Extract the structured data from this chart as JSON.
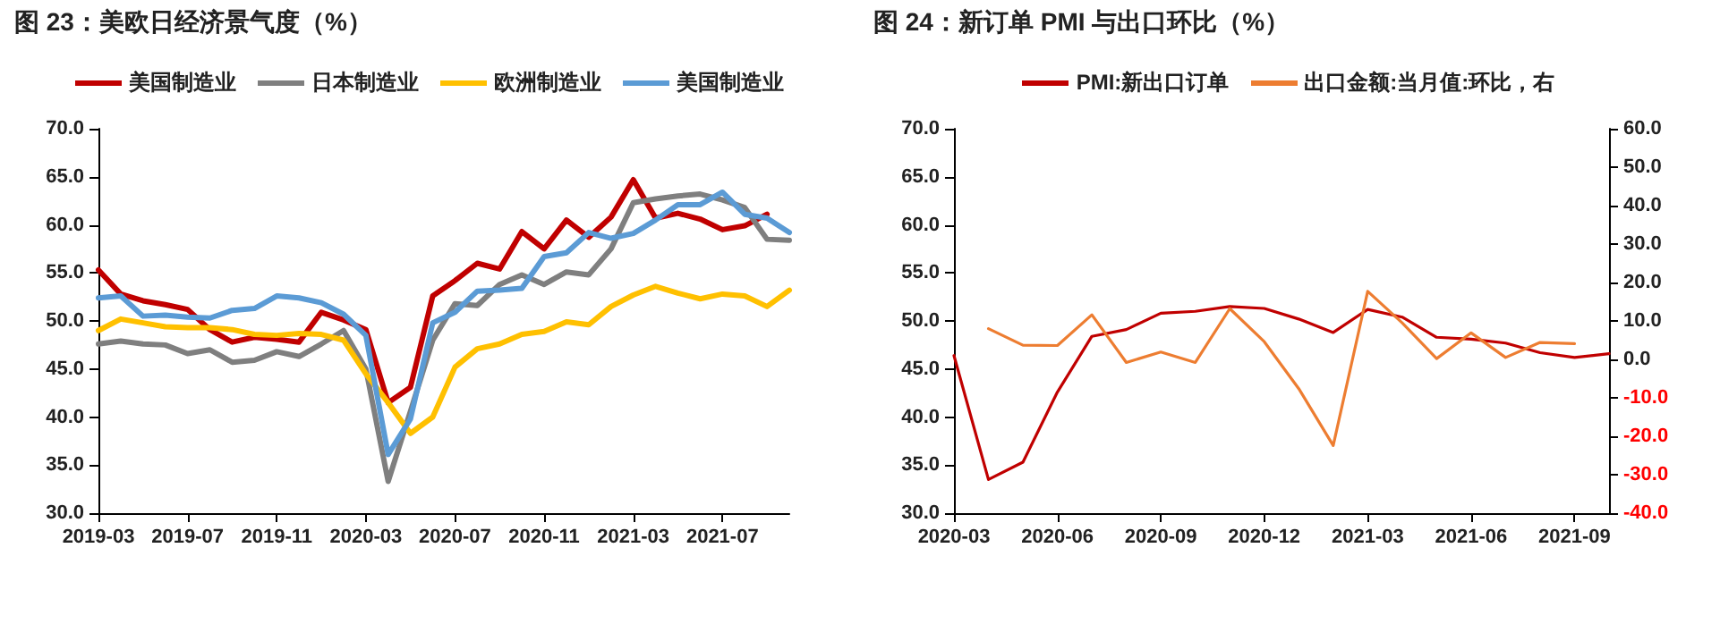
{
  "chart_data": [
    {
      "type": "line",
      "title": "图 23：美欧日经济景气度（%）",
      "legend": "top",
      "grid": false,
      "marker": "none",
      "categories": [
        "2019-03",
        null,
        null,
        null,
        "2019-07",
        null,
        null,
        null,
        "2019-11",
        null,
        null,
        null,
        "2020-03",
        null,
        null,
        null,
        "2020-07",
        null,
        null,
        null,
        "2020-11",
        null,
        null,
        null,
        "2021-03",
        null,
        null,
        null,
        "2021-07",
        null,
        null,
        null
      ],
      "ylim": [
        30,
        70
      ],
      "yticks": [
        {
          "value": 30,
          "label": "30.0"
        },
        {
          "value": 35,
          "label": "35.0"
        },
        {
          "value": 40,
          "label": "40.0"
        },
        {
          "value": 45,
          "label": "45.0"
        },
        {
          "value": 50,
          "label": "50.0"
        },
        {
          "value": 55,
          "label": "55.0"
        },
        {
          "value": 60,
          "label": "60.0"
        },
        {
          "value": 65,
          "label": "65.0"
        },
        {
          "value": 70,
          "label": "70.0"
        }
      ],
      "series": [
        {
          "name": "美国制造业",
          "color": "#c00000",
          "values": [
            55.3,
            52.8,
            52.1,
            51.7,
            51.2,
            49.1,
            47.8,
            48.3,
            48.1,
            47.8,
            50.9,
            50.1,
            49.1,
            41.5,
            43.1,
            52.6,
            54.2,
            56.0,
            55.4,
            59.3,
            57.5,
            60.5,
            58.7,
            60.8,
            64.7,
            60.7,
            61.2,
            60.6,
            59.5,
            59.9,
            61.1,
            null
          ]
        },
        {
          "name": "日本制造业",
          "color": "#7f7f7f",
          "values": [
            47.6,
            47.9,
            47.6,
            47.5,
            46.6,
            47.0,
            45.7,
            45.9,
            46.8,
            46.3,
            47.6,
            49.0,
            45.0,
            33.3,
            40.6,
            48.0,
            51.8,
            51.6,
            53.8,
            54.8,
            53.8,
            55.1,
            54.8,
            57.5,
            62.3,
            62.7,
            63.0,
            63.2,
            62.6,
            61.8,
            58.5,
            58.4
          ]
        },
        {
          "name": "欧洲制造业",
          "color": "#ffc000",
          "values": [
            49.0,
            50.2,
            49.8,
            49.4,
            49.3,
            49.3,
            49.1,
            48.6,
            48.5,
            48.7,
            48.6,
            48.0,
            44.5,
            41.5,
            38.3,
            40.0,
            45.2,
            47.1,
            47.6,
            48.6,
            48.9,
            49.9,
            49.6,
            51.5,
            52.7,
            53.6,
            52.9,
            52.3,
            52.8,
            52.6,
            51.5,
            53.2
          ]
        },
        {
          "name": "美国制造业",
          "color": "#5b9bd5",
          "values": [
            52.4,
            52.6,
            50.5,
            50.6,
            50.4,
            50.3,
            51.1,
            51.3,
            52.6,
            52.4,
            51.9,
            50.7,
            48.5,
            36.1,
            39.8,
            49.8,
            50.9,
            53.1,
            53.2,
            53.4,
            56.7,
            57.1,
            59.2,
            58.6,
            59.1,
            60.5,
            62.1,
            62.1,
            63.4,
            61.1,
            60.7,
            59.2
          ]
        }
      ]
    },
    {
      "type": "line",
      "title": "图 24：新订单 PMI 与出口环比（%）",
      "legend": "top",
      "grid": false,
      "marker": "none",
      "categories": [
        "2020-03",
        null,
        null,
        "2020-06",
        null,
        null,
        "2020-09",
        null,
        null,
        "2020-12",
        null,
        null,
        "2021-03",
        null,
        null,
        "2021-06",
        null,
        null,
        "2021-09",
        null
      ],
      "ylim": [
        30,
        70
      ],
      "yticks": [
        {
          "value": 30,
          "label": "30.0"
        },
        {
          "value": 35,
          "label": "35.0"
        },
        {
          "value": 40,
          "label": "40.0"
        },
        {
          "value": 45,
          "label": "45.0"
        },
        {
          "value": 50,
          "label": "50.0"
        },
        {
          "value": 55,
          "label": "55.0"
        },
        {
          "value": 60,
          "label": "60.0"
        },
        {
          "value": 65,
          "label": "65.0"
        },
        {
          "value": 70,
          "label": "70.0"
        }
      ],
      "y2lim": [
        -40,
        60
      ],
      "y2ticks": [
        {
          "value": -40,
          "label": "-40.0"
        },
        {
          "value": -30,
          "label": "-30.0"
        },
        {
          "value": -20,
          "label": "-20.0"
        },
        {
          "value": -10,
          "label": "-10.0"
        },
        {
          "value": 0,
          "label": "0.0"
        },
        {
          "value": 10,
          "label": "10.0"
        },
        {
          "value": 20,
          "label": "20.0"
        },
        {
          "value": 30,
          "label": "30.0"
        },
        {
          "value": 40,
          "label": "40.0"
        },
        {
          "value": 50,
          "label": "50.0"
        },
        {
          "value": 60,
          "label": "60.0"
        }
      ],
      "series": [
        {
          "name": "PMI:新出口订单",
          "color": "#c00000",
          "values": [
            46.4,
            33.5,
            35.3,
            42.6,
            48.4,
            49.1,
            50.8,
            51.0,
            51.5,
            51.3,
            50.2,
            48.8,
            51.2,
            50.4,
            48.3,
            48.1,
            47.7,
            46.7,
            46.2,
            46.6
          ]
        },
        {
          "name": "出口金额:当月值:环比，右",
          "color": "#ed7d31",
          "axis": "y2",
          "values": [
            null,
            8.0,
            3.7,
            3.6,
            11.6,
            -0.8,
            1.9,
            -0.8,
            13.2,
            4.6,
            -7.6,
            -22.4,
            17.7,
            9.5,
            0.2,
            6.9,
            0.5,
            4.4,
            4.1,
            null
          ]
        }
      ]
    }
  ]
}
